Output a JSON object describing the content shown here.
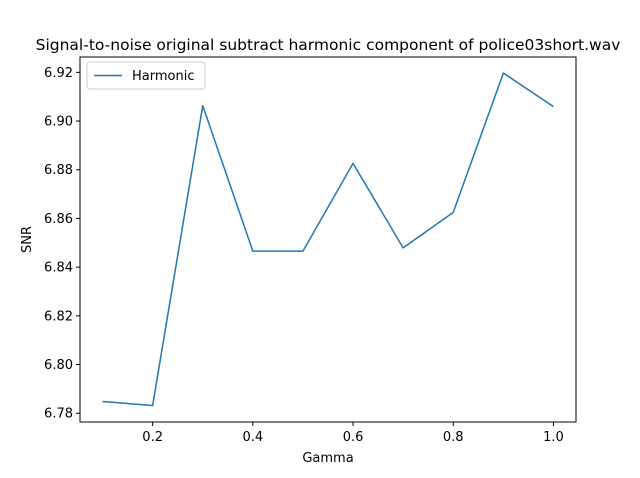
{
  "chart_data": {
    "type": "line",
    "title": "Signal-to-noise original subtract harmonic component of police03short.wav",
    "xlabel": "Gamma",
    "ylabel": "SNR",
    "x": [
      0.1,
      0.2,
      0.3,
      0.4,
      0.5,
      0.6,
      0.7,
      0.8,
      0.9,
      1.0
    ],
    "series": [
      {
        "name": "Harmonic",
        "color": "#1f77b4",
        "values": [
          6.7848,
          6.7832,
          6.9063,
          6.8466,
          6.8466,
          6.8826,
          6.8479,
          6.8625,
          6.9197,
          6.9059
        ]
      }
    ],
    "xlim": [
      0.055,
      1.045
    ],
    "ylim": [
      6.7764,
      6.9263
    ],
    "xticks": [
      0.2,
      0.4,
      0.6,
      0.8,
      1.0
    ],
    "xtick_labels": [
      "0.2",
      "0.4",
      "0.6",
      "0.8",
      "1.0"
    ],
    "yticks": [
      6.78,
      6.8,
      6.82,
      6.84,
      6.86,
      6.88,
      6.9,
      6.92
    ],
    "ytick_labels": [
      "6.78",
      "6.80",
      "6.82",
      "6.84",
      "6.86",
      "6.88",
      "6.90",
      "6.92"
    ],
    "legend_position": "top-left",
    "grid": false
  }
}
